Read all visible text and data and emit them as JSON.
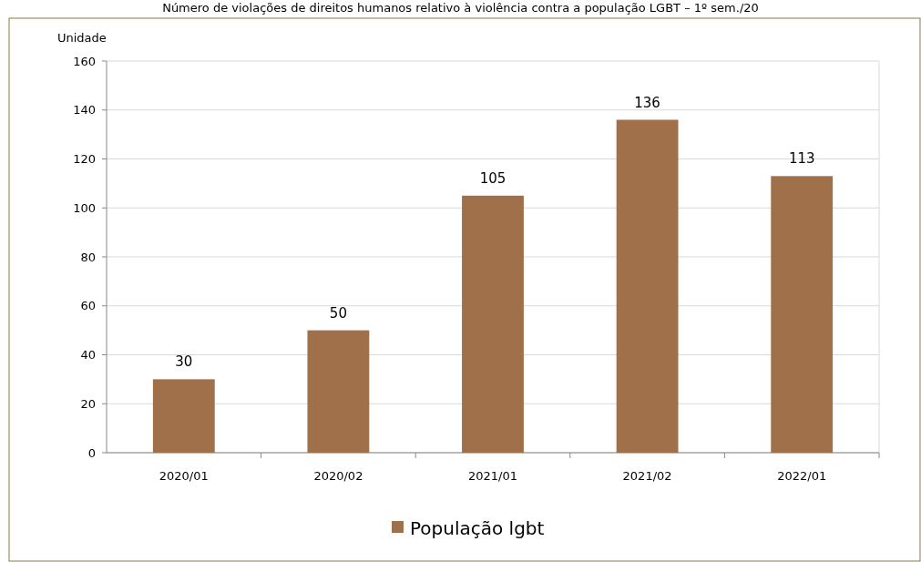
{
  "chart_data": {
    "type": "bar",
    "title": "Número de violações de direitos humanos relativo à violência contra a população LGBT – 1º sem./20",
    "ylabel": "Unidade",
    "categories": [
      "2020/01",
      "2020/02",
      "2021/01",
      "2021/02",
      "2022/01"
    ],
    "series": [
      {
        "name": "População lgbt",
        "color": "#a0704a",
        "values": [
          30,
          50,
          105,
          136,
          113
        ]
      }
    ],
    "ylim": [
      0,
      160
    ],
    "yticks": [
      0,
      20,
      40,
      60,
      80,
      100,
      120,
      140,
      160
    ],
    "grid": "y",
    "data_labels": true,
    "legend": "bottom"
  }
}
